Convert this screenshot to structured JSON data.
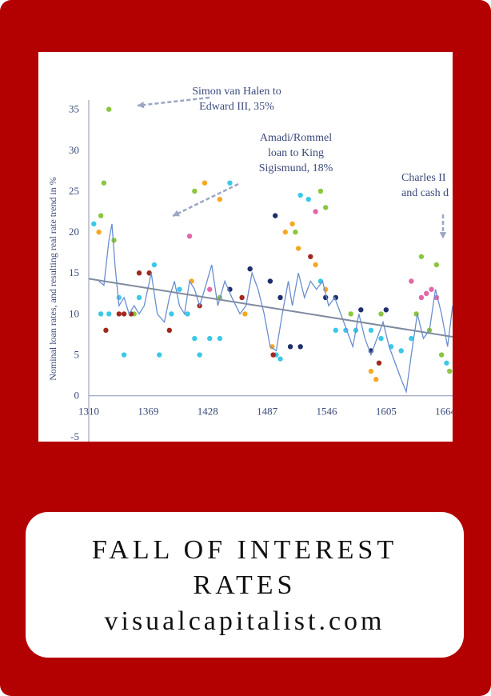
{
  "card": {
    "title": "FALL OF INTEREST RATES",
    "source": "visualcapitalist.com"
  },
  "chart_data": {
    "type": "scatter",
    "y_label": "Nominal loan rates, and resulting real rate trend in %",
    "annotations": [
      {
        "lines": [
          "Simon van Halen to",
          "Edward III, 35%"
        ]
      },
      {
        "lines": [
          "Amadi/Rommel",
          "loan to King",
          "Sigismund, 18%"
        ]
      },
      {
        "lines": [
          "Charles II",
          "and cash d"
        ]
      }
    ],
    "xlim": [
      1310,
      1671
    ],
    "ylim": [
      -5.6,
      42
    ],
    "xticks": [
      1310,
      1369,
      1428,
      1487,
      1546,
      1605,
      1664
    ],
    "yticks": [
      -5,
      0,
      5,
      10,
      15,
      20,
      25,
      30,
      35
    ],
    "series": [
      {
        "color": "#3cc8e8",
        "x": [
          1315,
          1322,
          1330,
          1340,
          1345,
          1360,
          1375,
          1380,
          1392,
          1400,
          1408,
          1415,
          1420,
          1430,
          1440,
          1450,
          1496,
          1500,
          1520,
          1528,
          1540,
          1555,
          1565,
          1575,
          1590,
          1600,
          1610,
          1620,
          1630,
          1665
        ],
        "values": [
          21,
          10,
          10,
          12,
          5,
          12,
          16,
          5,
          10,
          13,
          10,
          7,
          5,
          7,
          7,
          26,
          5,
          4.5,
          24.5,
          24,
          14,
          8,
          8,
          8,
          8,
          7,
          6,
          5.5,
          7,
          4
        ]
      },
      {
        "color": "#8cc63f",
        "x": [
          1325,
          1322,
          1330,
          1335,
          1355,
          1415,
          1440,
          1515,
          1540,
          1545,
          1570,
          1600,
          1635,
          1640,
          1648,
          1655,
          1660,
          1668
        ],
        "values": [
          26,
          22,
          35,
          19,
          10,
          25,
          12,
          20,
          25,
          23,
          10,
          10,
          10,
          17,
          8,
          16,
          5,
          3
        ]
      },
      {
        "color": "#f7a823",
        "x": [
          1320,
          1412,
          1425,
          1440,
          1465,
          1492,
          1505,
          1512,
          1518,
          1535,
          1545,
          1590,
          1595
        ],
        "values": [
          20,
          14,
          26,
          24,
          10,
          6,
          20,
          21,
          18,
          16,
          13,
          3,
          2
        ]
      },
      {
        "color": "#a0281e",
        "x": [
          1327,
          1340,
          1345,
          1352,
          1360,
          1370,
          1390,
          1420,
          1462,
          1493,
          1530,
          1598
        ],
        "values": [
          8,
          10,
          10,
          10,
          15,
          15,
          8,
          11,
          12,
          5,
          17,
          4
        ]
      },
      {
        "color": "#1e2f6b",
        "x": [
          1490,
          1495,
          1500,
          1510,
          1520,
          1545,
          1555,
          1580,
          1590,
          1605,
          1470,
          1450
        ],
        "values": [
          14,
          22,
          12,
          6,
          6,
          12,
          12,
          10.5,
          5.5,
          10.5,
          15.5,
          13
        ]
      },
      {
        "color": "#e466a8",
        "x": [
          1410,
          1430,
          1535,
          1630,
          1640,
          1645,
          1650,
          1655
        ],
        "values": [
          19.5,
          13,
          22.5,
          14,
          12,
          12.5,
          13,
          12
        ]
      }
    ],
    "trend": {
      "color": "#7f8aa0",
      "x": [
        1310,
        1671
      ],
      "values": [
        14.3,
        7.2
      ]
    },
    "smoothed": {
      "color": "#6a8fd0",
      "x": [
        1320,
        1325,
        1330,
        1333,
        1336,
        1340,
        1345,
        1350,
        1355,
        1360,
        1365,
        1372,
        1378,
        1385,
        1390,
        1395,
        1400,
        1405,
        1410,
        1415,
        1420,
        1425,
        1432,
        1438,
        1445,
        1452,
        1460,
        1466,
        1472,
        1478,
        1484,
        1490,
        1496,
        1502,
        1508,
        1512,
        1518,
        1524,
        1530,
        1536,
        1542,
        1548,
        1554,
        1560,
        1566,
        1572,
        1578,
        1584,
        1590,
        1596,
        1602,
        1608,
        1614,
        1620,
        1625,
        1630,
        1636,
        1642,
        1648,
        1654,
        1660,
        1666,
        1671
      ],
      "values": [
        14,
        13.5,
        19,
        21,
        16,
        11,
        12,
        10,
        11,
        10,
        11,
        15,
        10,
        9,
        12,
        14,
        11,
        10,
        14,
        13,
        11,
        13,
        16,
        11,
        14,
        12,
        10,
        11,
        15,
        13,
        10,
        6,
        5.5,
        10,
        14,
        11,
        15,
        12,
        14,
        13,
        14,
        11,
        12,
        10,
        8,
        6,
        10,
        7,
        5,
        7,
        9,
        6,
        4,
        2,
        0.5,
        5,
        10,
        7,
        8,
        13,
        10,
        6,
        11
      ]
    }
  }
}
